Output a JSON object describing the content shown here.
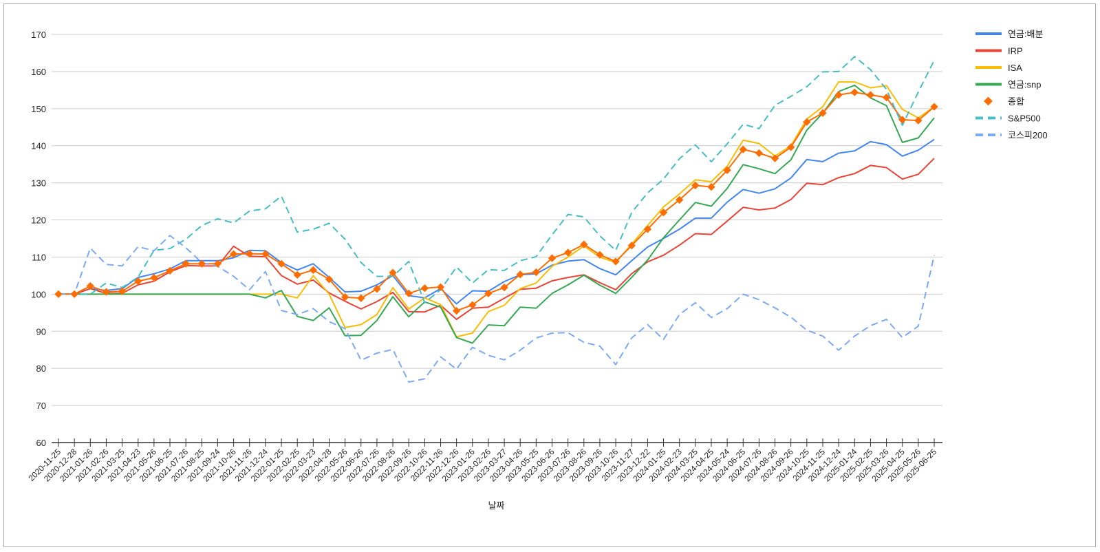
{
  "chart_data": {
    "type": "line",
    "title": "",
    "xlabel": "날짜",
    "ylabel": "",
    "ylim": [
      60,
      170
    ],
    "yticks": [
      60,
      70,
      80,
      90,
      100,
      110,
      120,
      130,
      140,
      150,
      160,
      170
    ],
    "grid": true,
    "legend_position": "right",
    "categories": [
      "2020-11-25",
      "2020-12-28",
      "2021-01-26",
      "2021-02-26",
      "2021-03-25",
      "2021-04-23",
      "2021-05-26",
      "2021-06-25",
      "2021-07-26",
      "2021-08-25",
      "2021-09-24",
      "2021-10-26",
      "2021-11-26",
      "2021-12-24",
      "2022-01-25",
      "2022-02-25",
      "2022-03-23",
      "2022-04-28",
      "2022-05-26",
      "2022-06-26",
      "2022-07-26",
      "2022-08-26",
      "2022-09-26",
      "2022-10-26",
      "2022-11-26",
      "2022-12-26",
      "2023-01-26",
      "2023-02-26",
      "2023-03-27",
      "2023-04-26",
      "2023-05-25",
      "2023-06-26",
      "2023-07-26",
      "2023-08-26",
      "2023-09-26",
      "2023-10-26",
      "2023-11-27",
      "2023-12-22",
      "2024-01-25",
      "2024-02-23",
      "2024-03-25",
      "2024-04-25",
      "2024-05-24",
      "2024-06-25",
      "2024-07-26",
      "2024-08-26",
      "2024-09-26",
      "2024-10-25",
      "2024-11-25",
      "2024-12-24",
      "2025-01-24",
      "2025-02-25",
      "2025-03-26",
      "2025-04-25",
      "2025-05-26",
      "2025-06-25"
    ],
    "series": [
      {
        "name": "연금:배분",
        "color": "#4285f4",
        "style": "solid",
        "values": [
          100,
          100,
          101.5,
          101,
          101.5,
          104.5,
          105.5,
          106.8,
          109,
          109,
          109,
          109.8,
          111.8,
          111.7,
          108.5,
          106.5,
          108.2,
          104.5,
          100.6,
          100.8,
          102.5,
          105,
          99.6,
          99,
          101.5,
          97.4,
          100.9,
          100.8,
          103.4,
          105.2,
          105.5,
          107.8,
          108.9,
          109.3,
          106.9,
          105.2,
          109,
          112.7,
          115,
          117.5,
          120.5,
          120.5,
          124.8,
          128.2,
          127.2,
          128.4,
          131.3,
          136.3,
          135.7,
          138,
          138.6,
          141.1,
          140.3,
          137.2,
          138.8,
          141.7
        ]
      },
      {
        "name": "IRP",
        "color": "#ea4335",
        "style": "solid",
        "values": [
          100,
          100,
          101.5,
          100.2,
          100.2,
          102.5,
          103.5,
          106,
          107.7,
          107.6,
          107.6,
          112.9,
          110.2,
          110.1,
          105,
          102.7,
          103.8,
          100.3,
          98.1,
          96,
          98,
          100.5,
          95.3,
          95.2,
          97,
          93.2,
          96.2,
          96.5,
          98.9,
          101.3,
          101.6,
          103.6,
          104.5,
          105.2,
          103.1,
          101.2,
          105.5,
          108.7,
          110.5,
          113.2,
          116.3,
          116.1,
          119.7,
          123.4,
          122.7,
          123.2,
          125.5,
          129.9,
          129.5,
          131.4,
          132.5,
          134.7,
          134.1,
          131,
          132.3,
          136.6
        ]
      },
      {
        "name": "ISA",
        "color": "#fbbc04",
        "style": "solid",
        "values": [
          100,
          100,
          100,
          100,
          100,
          100,
          100,
          100,
          100,
          100,
          100,
          100,
          100,
          100,
          100,
          99,
          105,
          100,
          91,
          91.8,
          94.5,
          101.8,
          96,
          99,
          97.2,
          88.5,
          89.5,
          95.3,
          97,
          101.5,
          103,
          107.5,
          110,
          113,
          110,
          108.5,
          113.5,
          118.5,
          123.5,
          127,
          130.8,
          130.3,
          134.5,
          141.5,
          140.6,
          137.2,
          140,
          147.2,
          150.5,
          157.2,
          157.2,
          155.6,
          156.2,
          149.8,
          147.5,
          150.5
        ]
      },
      {
        "name": "연금:snp",
        "color": "#34a853",
        "style": "solid",
        "values": [
          100,
          100,
          100,
          100,
          100,
          100,
          100,
          100,
          100,
          100,
          100,
          100,
          100,
          99,
          101,
          94,
          92.9,
          96.3,
          88.8,
          88.9,
          92.9,
          99.3,
          93.9,
          97.9,
          96.5,
          88.3,
          86.8,
          91.7,
          91.5,
          96.5,
          96.2,
          100.2,
          102.5,
          105.1,
          102.4,
          100.2,
          104.5,
          109.2,
          115.2,
          120,
          124.7,
          123.7,
          128.5,
          134.9,
          133.8,
          132.5,
          136.2,
          144.2,
          148.8,
          154.6,
          156.3,
          152.9,
          150.8,
          140.9,
          142.1,
          147.5
        ]
      },
      {
        "name": "종합",
        "color": "#ff6d01",
        "style": "solid",
        "marker": "diamond",
        "values": [
          100,
          100,
          102.2,
          100.6,
          100.8,
          103.5,
          104.4,
          106.3,
          108.2,
          108.2,
          108.2,
          110.8,
          110.9,
          110.8,
          108.2,
          105.2,
          106.5,
          104,
          99.2,
          98.9,
          101.4,
          105.8,
          100.2,
          101.6,
          101.9,
          95.5,
          97.1,
          100.2,
          101.8,
          105.3,
          105.9,
          109.7,
          111.2,
          113.4,
          110.6,
          108.8,
          113.1,
          117.5,
          122,
          125.4,
          129.3,
          128.9,
          133.4,
          139,
          138,
          136.6,
          139.6,
          146.4,
          148.8,
          153.7,
          154.4,
          153.7,
          153,
          147,
          146.8,
          150.5
        ]
      },
      {
        "name": "S&P500",
        "color": "#46bdc6",
        "style": "dashed",
        "values": [
          100,
          100,
          100,
          103,
          101.8,
          104.6,
          111.8,
          112.3,
          114.8,
          118.5,
          120.3,
          119.2,
          122.4,
          123,
          126.4,
          116.7,
          117.5,
          119.1,
          114.8,
          108.5,
          104.8,
          104.8,
          108.8,
          97.7,
          101.2,
          107.3,
          103,
          106.6,
          106.4,
          109,
          110.1,
          116,
          121.5,
          120.8,
          115.7,
          111.8,
          122,
          127.3,
          131,
          136.5,
          140.2,
          135.7,
          140.5,
          145.8,
          144.6,
          150.9,
          153.3,
          155.9,
          159.9,
          160,
          164,
          160.5,
          155.2,
          145.5,
          154.5,
          163
        ]
      },
      {
        "name": "코스피200",
        "color": "#7baaf7",
        "style": "dashed",
        "values": [
          100,
          100,
          112.4,
          108,
          107.6,
          112.8,
          111.7,
          115.8,
          112.5,
          108.5,
          107.5,
          104.8,
          101.2,
          106.1,
          95.6,
          94.5,
          96.1,
          92.6,
          90.7,
          82.2,
          84.1,
          85.1,
          76.3,
          77.2,
          83.1,
          79.8,
          85.7,
          83.5,
          82.3,
          84.9,
          88.2,
          89.5,
          89.6,
          87,
          86,
          81,
          88.2,
          91.8,
          87.8,
          94.5,
          97.7,
          93.7,
          96.1,
          100,
          98.5,
          96.3,
          93.8,
          90.3,
          88.7,
          84.9,
          88.7,
          91.5,
          93.2,
          88.3,
          91.4,
          110.5
        ]
      }
    ]
  }
}
